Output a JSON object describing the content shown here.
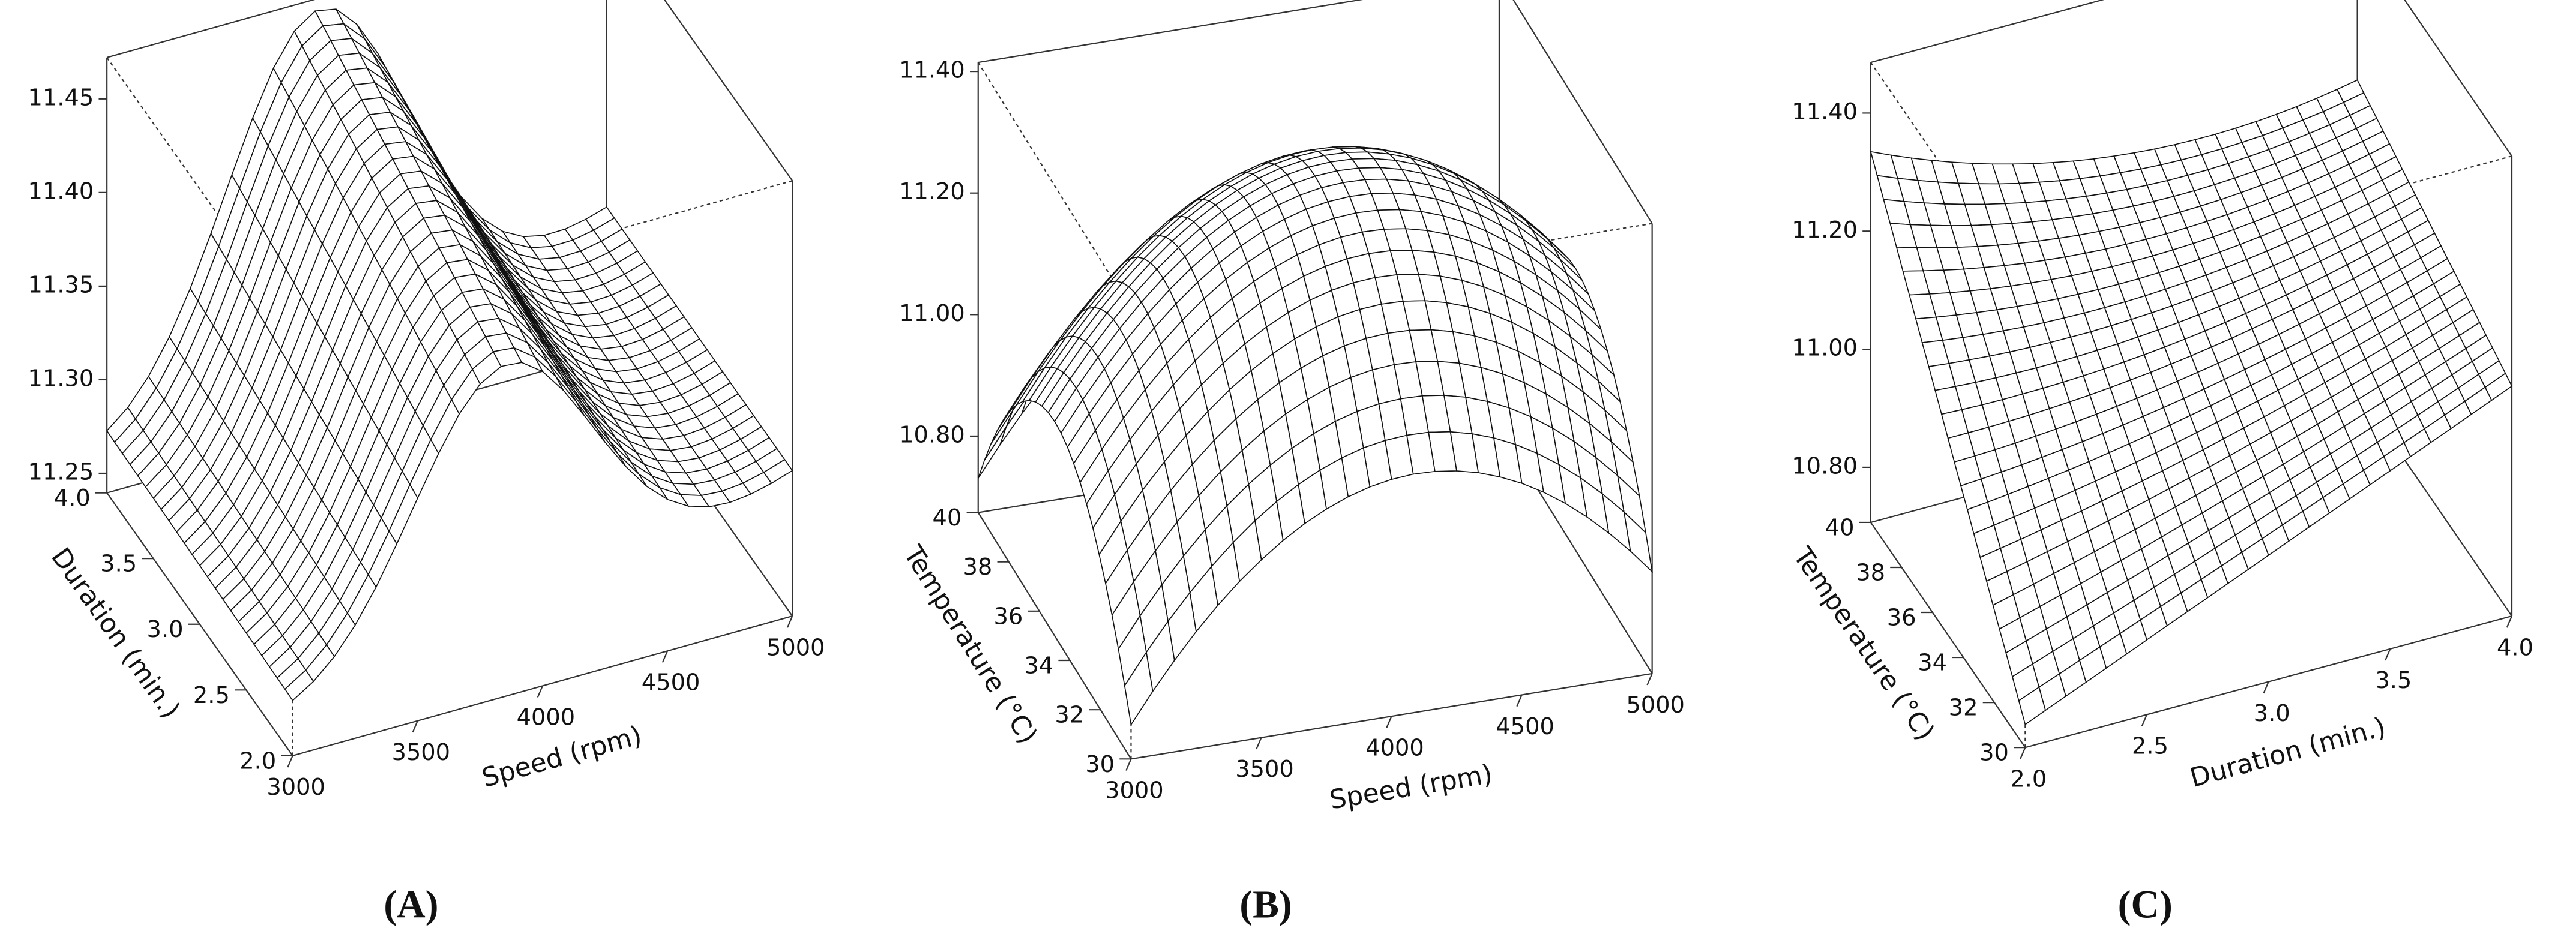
{
  "panels": [
    {
      "label": "(A)",
      "z_ticks": [
        "11.25",
        "11.30",
        "11.35",
        "11.40",
        "11.45"
      ],
      "x_axis": {
        "title": "Speed (rpm)",
        "ticks": [
          "3000",
          "3500",
          "4000",
          "4500",
          "5000"
        ]
      },
      "y_axis": {
        "title": "Duration (min.)",
        "ticks": [
          "2.0",
          "2.5",
          "3.0",
          "3.5",
          "4.0"
        ]
      }
    },
    {
      "label": "(B)",
      "z_ticks": [
        "10.80",
        "11.00",
        "11.20",
        "11.40"
      ],
      "x_axis": {
        "title": "Speed (rpm)",
        "ticks": [
          "3000",
          "3500",
          "4000",
          "4500",
          "5000"
        ]
      },
      "y_axis": {
        "title": "Temperature (°C)",
        "ticks": [
          "30",
          "32",
          "34",
          "36",
          "38",
          "40"
        ]
      }
    },
    {
      "label": "(C)",
      "z_ticks": [
        "10.80",
        "11.00",
        "11.20",
        "11.40"
      ],
      "x_axis": {
        "title": "Duration (min.)",
        "ticks": [
          "2.0",
          "2.5",
          "3.0",
          "3.5",
          "4.0"
        ]
      },
      "y_axis": {
        "title": "Temperature (°C)",
        "ticks": [
          "30",
          "32",
          "34",
          "36",
          "38",
          "40"
        ]
      }
    }
  ]
}
